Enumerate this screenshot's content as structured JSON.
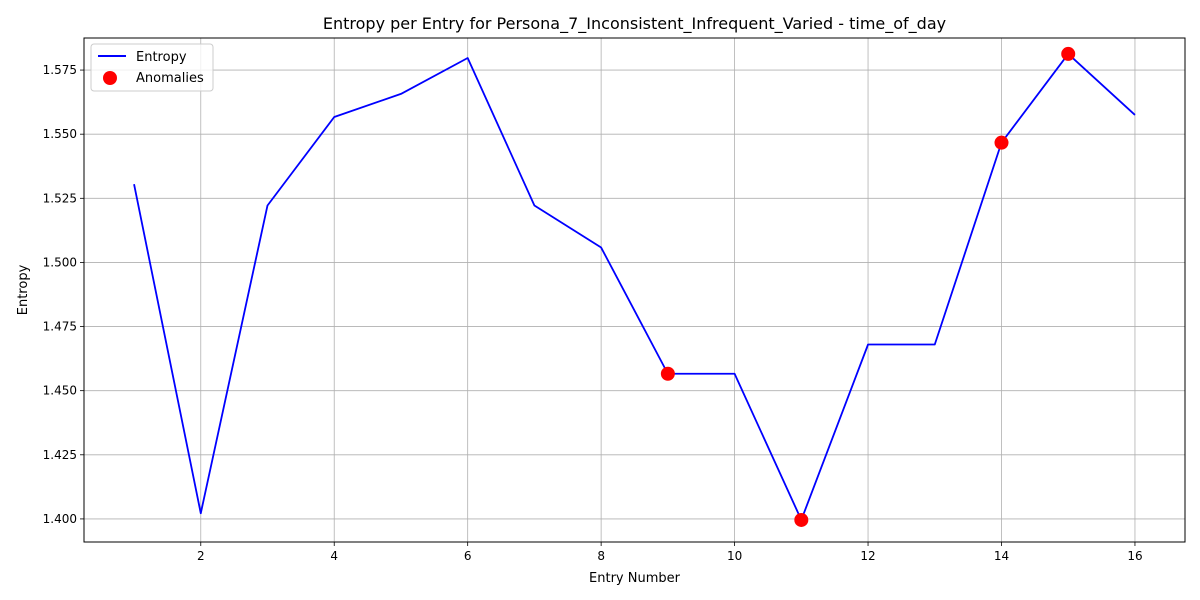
{
  "chart_data": {
    "type": "line",
    "title": "Entropy per Entry for Persona_7_Inconsistent_Infrequent_Varied - time_of_day",
    "xlabel": "Entry Number",
    "ylabel": "Entropy",
    "xlim": [
      0.25,
      16.75
    ],
    "ylim": [
      1.391,
      1.5875
    ],
    "xticks": [
      2,
      4,
      6,
      8,
      10,
      12,
      14,
      16
    ],
    "xtick_labels": [
      "2",
      "4",
      "6",
      "8",
      "10",
      "12",
      "14",
      "16"
    ],
    "yticks": [
      1.4,
      1.425,
      1.45,
      1.475,
      1.5,
      1.525,
      1.55,
      1.575
    ],
    "ytick_labels": [
      "1.400",
      "1.425",
      "1.450",
      "1.475",
      "1.500",
      "1.525",
      "1.550",
      "1.575"
    ],
    "grid": true,
    "legend_position": "top-left",
    "series": [
      {
        "name": "Entropy",
        "kind": "line",
        "color": "#0000ff",
        "x": [
          1,
          2,
          3,
          4,
          5,
          6,
          7,
          8,
          9,
          10,
          11,
          12,
          13,
          14,
          15,
          16
        ],
        "y": [
          1.5305,
          1.4022,
          1.5222,
          1.5567,
          1.5657,
          1.5797,
          1.5222,
          1.5058,
          1.4566,
          1.4566,
          1.3996,
          1.468,
          1.468,
          1.5467,
          1.5813,
          1.5575
        ]
      },
      {
        "name": "Anomalies",
        "kind": "scatter",
        "color": "#ff0000",
        "x": [
          9,
          11,
          14,
          15
        ],
        "y": [
          1.4566,
          1.3996,
          1.5467,
          1.5813
        ]
      }
    ]
  }
}
